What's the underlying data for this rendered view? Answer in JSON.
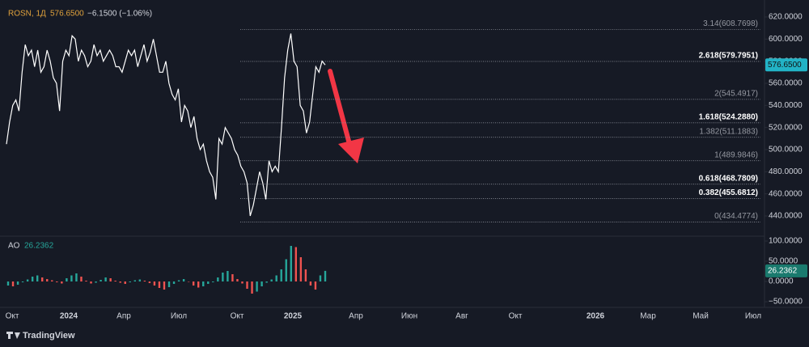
{
  "chart_data": {
    "type": "line",
    "header": {
      "symbol": "ROSN, 1Д",
      "price": "576.6500",
      "change": "−6.1500 (−1.06%)"
    },
    "series": [
      {
        "name": "ROSN",
        "color": "#ffffff",
        "values": [
          505,
          525,
          540,
          545,
          535,
          570,
          595,
          585,
          590,
          575,
          590,
          570,
          575,
          590,
          580,
          565,
          560,
          535,
          580,
          590,
          585,
          603,
          600,
          580,
          590,
          585,
          575,
          580,
          595,
          585,
          590,
          580,
          585,
          590,
          585,
          575,
          575,
          570,
          580,
          590,
          585,
          590,
          575,
          585,
          595,
          580,
          588,
          600,
          585,
          570,
          570,
          580,
          560,
          550,
          545,
          555,
          525,
          540,
          535,
          520,
          530,
          510,
          500,
          505,
          490,
          480,
          475,
          455,
          510,
          505,
          520,
          515,
          510,
          500,
          495,
          485,
          480,
          470,
          440,
          450,
          465,
          480,
          470,
          455,
          490,
          480,
          485,
          480,
          520,
          565,
          590,
          605,
          580,
          575,
          540,
          535,
          515,
          525,
          550,
          575,
          570,
          580,
          576.65
        ]
      }
    ],
    "last_price_label": "576.6500",
    "ylim": [
      440,
      620
    ],
    "yticks": [
      {
        "value": 620,
        "label": "620.0000"
      },
      {
        "value": 600,
        "label": "600.0000"
      },
      {
        "value": 580,
        "label": "580.0000"
      },
      {
        "value": 560,
        "label": "560.0000"
      },
      {
        "value": 540,
        "label": "540.0000"
      },
      {
        "value": 520,
        "label": "520.0000"
      },
      {
        "value": 500,
        "label": "500.0000"
      },
      {
        "value": 480,
        "label": "480.0000"
      },
      {
        "value": 460,
        "label": "460.0000"
      },
      {
        "value": 440,
        "label": "440.0000"
      }
    ],
    "fib_levels": [
      {
        "value": 608.7698,
        "label": "3.14(608.7698)",
        "bold": false
      },
      {
        "value": 579.7951,
        "label": "2.618(579.7951)",
        "bold": true
      },
      {
        "value": 545.4917,
        "label": "2(545.4917)",
        "bold": false
      },
      {
        "value": 524.288,
        "label": "1.618(524.2880)",
        "bold": true
      },
      {
        "value": 511.1883,
        "label": "1.382(511.1883)",
        "bold": false
      },
      {
        "value": 489.9846,
        "label": "1(489.9846)",
        "bold": false
      },
      {
        "value": 468.7809,
        "label": "0.618(468.7809)",
        "bold": true
      },
      {
        "value": 455.6812,
        "label": "0.382(455.6812)",
        "bold": true
      },
      {
        "value": 434.4774,
        "label": "0(434.4774)",
        "bold": false
      }
    ],
    "ao": {
      "name": "AO",
      "value_label": "26.2362",
      "up_color": "#26a69a",
      "down_color": "#ef5350",
      "values": [
        -10,
        -12,
        -8,
        -2,
        5,
        12,
        15,
        10,
        6,
        3,
        -2,
        -5,
        8,
        15,
        20,
        12,
        2,
        -5,
        -3,
        4,
        10,
        8,
        2,
        -3,
        -6,
        -2,
        3,
        5,
        2,
        -4,
        -10,
        -16,
        -20,
        -14,
        -6,
        3,
        6,
        0,
        -10,
        -15,
        -12,
        -6,
        -2,
        10,
        22,
        26,
        18,
        6,
        -5,
        -18,
        -30,
        -25,
        -12,
        -3,
        5,
        15,
        30,
        55,
        88,
        85,
        60,
        30,
        -10,
        -20,
        15,
        26.2362
      ],
      "ylim": [
        -50,
        100
      ],
      "yticks": [
        {
          "value": 100,
          "label": "100.0000"
        },
        {
          "value": 50,
          "label": "50.0000"
        },
        {
          "value": 0,
          "label": "0.0000"
        },
        {
          "value": -50,
          "label": "−50.0000"
        }
      ]
    },
    "xticks": [
      "Окт",
      "2024",
      "Апр",
      "Июл",
      "Окт",
      "2025",
      "Апр",
      "Июн",
      "Авг",
      "Окт",
      "2026",
      "Мар",
      "Май",
      "Июл"
    ],
    "brand": "TradingView"
  }
}
